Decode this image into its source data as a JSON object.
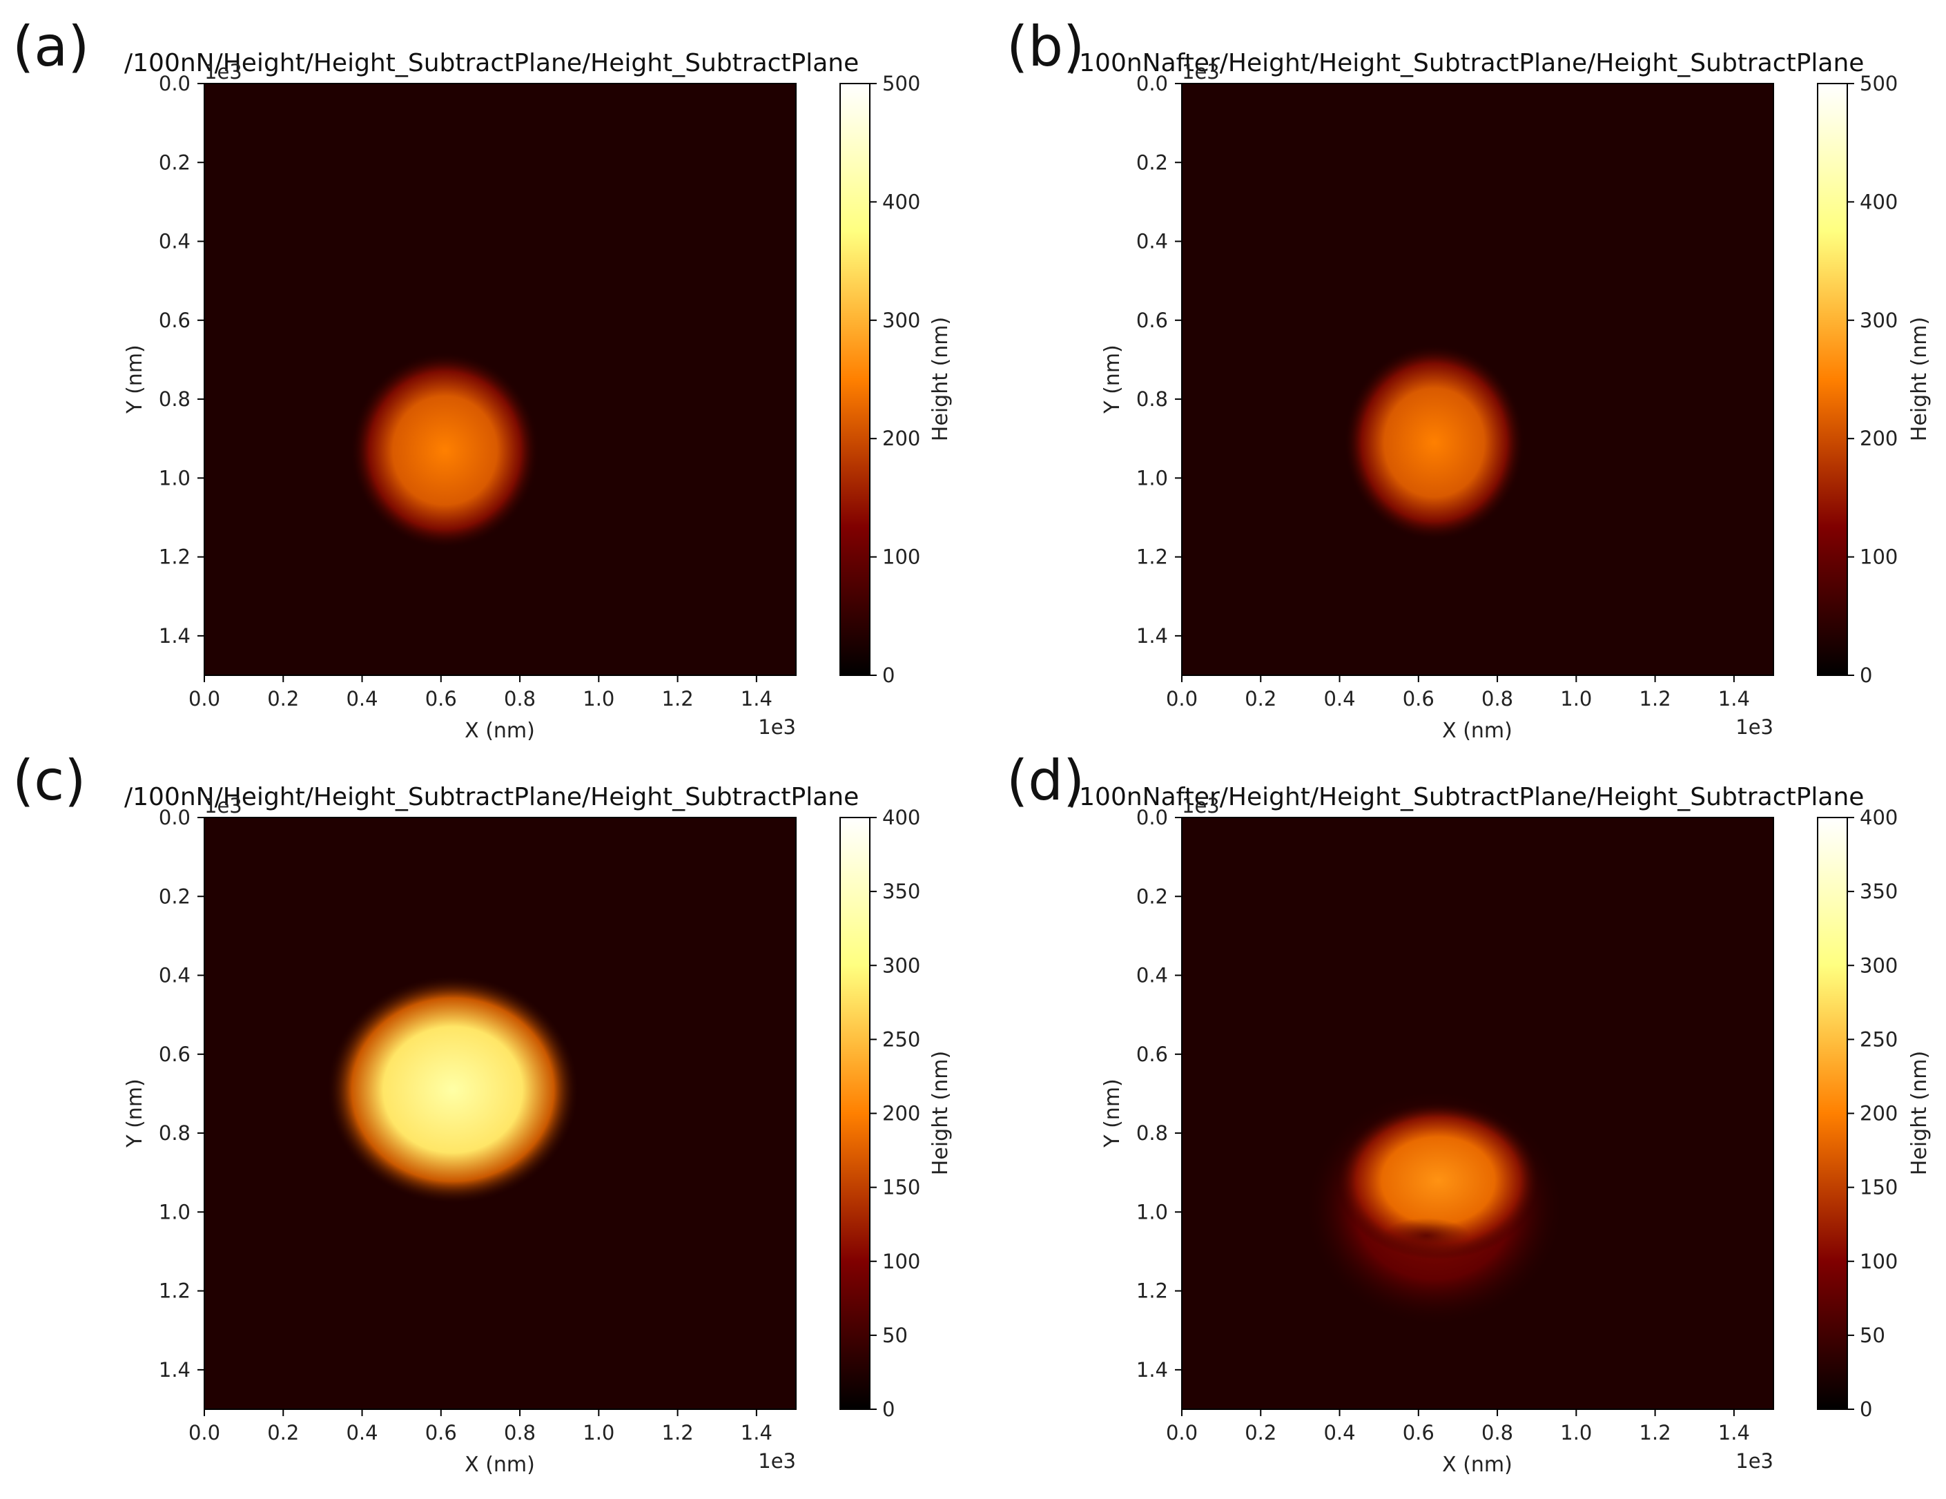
{
  "colormap": "afmhot",
  "colormap_stops": [
    "#000000",
    "#800000",
    "#ff8000",
    "#ffff80",
    "#ffffff"
  ],
  "chart_data": [
    {
      "type": "heatmap",
      "panel_label": "(a)",
      "title": "/100nN/Height/Height_SubtractPlane/Height_SubtractPlane",
      "xlabel": "X (nm)",
      "ylabel": "Y (nm)",
      "x_ticks": [
        "0.0",
        "0.2",
        "0.4",
        "0.6",
        "0.8",
        "1.0",
        "1.2",
        "1.4"
      ],
      "y_ticks": [
        "0.0",
        "0.2",
        "0.4",
        "0.6",
        "0.8",
        "1.0",
        "1.2",
        "1.4"
      ],
      "x_exponent": "1e3",
      "y_exponent": "1e3",
      "xlim": [
        0,
        1500
      ],
      "ylim": [
        0,
        1500
      ],
      "colorbar": {
        "label": "Height (nm)",
        "range": [
          0,
          500
        ],
        "ticks": [
          "0",
          "100",
          "200",
          "300",
          "400",
          "500"
        ]
      },
      "background_level": 30,
      "features": [
        {
          "shape": "blob",
          "center_x": 610,
          "center_y": 930,
          "radius_x": 240,
          "radius_y": 250,
          "peak_height": 250
        }
      ]
    },
    {
      "type": "heatmap",
      "panel_label": "(b)",
      "title": "/100nNafter/Height/Height_SubtractPlane/Height_SubtractPlane",
      "xlabel": "X (nm)",
      "ylabel": "Y (nm)",
      "x_ticks": [
        "0.0",
        "0.2",
        "0.4",
        "0.6",
        "0.8",
        "1.0",
        "1.2",
        "1.4"
      ],
      "y_ticks": [
        "0.0",
        "0.2",
        "0.4",
        "0.6",
        "0.8",
        "1.0",
        "1.2",
        "1.4"
      ],
      "x_exponent": "1e3",
      "y_exponent": "1e3",
      "xlim": [
        0,
        1500
      ],
      "ylim": [
        0,
        1500
      ],
      "colorbar": {
        "label": "Height (nm)",
        "range": [
          0,
          500
        ],
        "ticks": [
          "0",
          "100",
          "200",
          "300",
          "400",
          "500"
        ]
      },
      "background_level": 30,
      "features": [
        {
          "shape": "blob",
          "center_x": 640,
          "center_y": 910,
          "radius_x": 230,
          "radius_y": 250,
          "peak_height": 250
        }
      ]
    },
    {
      "type": "heatmap",
      "panel_label": "(c)",
      "title": "/100nN/Height/Height_SubtractPlane/Height_SubtractPlane",
      "xlabel": "X (nm)",
      "ylabel": "Y (nm)",
      "x_ticks": [
        "0.0",
        "0.2",
        "0.4",
        "0.6",
        "0.8",
        "1.0",
        "1.2",
        "1.4"
      ],
      "y_ticks": [
        "0.0",
        "0.2",
        "0.4",
        "0.6",
        "0.8",
        "1.0",
        "1.2",
        "1.4"
      ],
      "x_exponent": "1e3",
      "y_exponent": "1e3",
      "xlim": [
        0,
        1500
      ],
      "ylim": [
        0,
        1500
      ],
      "colorbar": {
        "label": "Height (nm)",
        "range": [
          0,
          400
        ],
        "ticks": [
          "0",
          "50",
          "100",
          "150",
          "200",
          "250",
          "300",
          "350",
          "400"
        ]
      },
      "background_level": 25,
      "features": [
        {
          "shape": "blob",
          "center_x": 630,
          "center_y": 690,
          "radius_x": 320,
          "radius_y": 290,
          "peak_height": 330
        }
      ]
    },
    {
      "type": "heatmap",
      "panel_label": "(d)",
      "title": "/100nNafter/Height/Height_SubtractPlane/Height_SubtractPlane",
      "xlabel": "X (nm)",
      "ylabel": "Y (nm)",
      "x_ticks": [
        "0.0",
        "0.2",
        "0.4",
        "0.6",
        "0.8",
        "1.0",
        "1.2",
        "1.4"
      ],
      "y_ticks": [
        "0.0",
        "0.2",
        "0.4",
        "0.6",
        "0.8",
        "1.0",
        "1.2",
        "1.4"
      ],
      "x_exponent": "1e3",
      "y_exponent": "1e3",
      "xlim": [
        0,
        1500
      ],
      "ylim": [
        0,
        1500
      ],
      "colorbar": {
        "label": "Height (nm)",
        "range": [
          0,
          400
        ],
        "ticks": [
          "0",
          "50",
          "100",
          "150",
          "200",
          "250",
          "300",
          "350",
          "400"
        ]
      },
      "background_level": 25,
      "features": [
        {
          "shape": "halo",
          "center_x": 640,
          "center_y": 990,
          "radius_x": 330,
          "radius_y": 300,
          "peak_height": 110
        },
        {
          "shape": "blob",
          "center_x": 650,
          "center_y": 920,
          "radius_x": 260,
          "radius_y": 200,
          "peak_height": 215
        },
        {
          "shape": "pit",
          "center_x": 620,
          "center_y": 1060,
          "radius_x": 110,
          "radius_y": 45,
          "peak_height": -90
        }
      ]
    }
  ]
}
